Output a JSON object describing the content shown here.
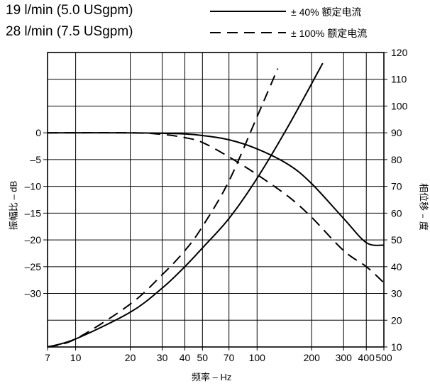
{
  "chart_data": {
    "type": "line",
    "flow_labels": [
      "19 l/min (5.0 USgpm)",
      "28 l/min (7.5 USgpm)"
    ],
    "legend": [
      {
        "style": "solid",
        "label_prefix": "± 40%",
        "label_cjk": "额定电流"
      },
      {
        "style": "dashed",
        "label_prefix": "± 100%",
        "label_cjk": "额定电流"
      }
    ],
    "xlabel_cjk": "频率",
    "xlabel_suffix": " – Hz",
    "ylabel_left_cjk": "振幅比",
    "ylabel_left_suffix": " – dB",
    "ylabel_right_cjk": "相位移 – 度",
    "x_scale": "log",
    "xlim": [
      7,
      500
    ],
    "x_ticks": [
      7,
      10,
      20,
      30,
      40,
      50,
      70,
      100,
      200,
      300,
      400,
      500
    ],
    "x_tick_labels": [
      "7",
      "10",
      "20",
      "30",
      "40",
      "50",
      "70",
      "100",
      "200",
      "300",
      "400",
      "500"
    ],
    "ylim_right": [
      10,
      120
    ],
    "y_right_ticks": [
      10,
      20,
      30,
      40,
      50,
      60,
      70,
      80,
      90,
      100,
      110,
      120
    ],
    "y_right_tick_labels": [
      "10",
      "20",
      "30",
      "40",
      "50",
      "60",
      "70",
      "80",
      "90",
      "100",
      "110",
      "120"
    ],
    "y_left_ticks": [
      0,
      -5,
      -10,
      -15,
      -20,
      -25,
      -30
    ],
    "y_left_tick_labels": [
      "0",
      "–5",
      "–10",
      "–15",
      "–20",
      "–25",
      "–30"
    ],
    "left_axis_map": {
      "db_0_at_right_value": 90,
      "right_units_per_db": 2
    },
    "grid": true,
    "series": [
      {
        "style": "solid",
        "quantity": "amplitude",
        "axis": "left",
        "x": [
          7,
          20,
          30,
          40,
          50,
          70,
          100,
          150,
          200,
          300,
          400,
          500
        ],
        "y": [
          0,
          0,
          -0.1,
          -0.2,
          -0.5,
          -1.3,
          -3.0,
          -6.0,
          -9.5,
          -16.0,
          -20.5,
          -21.0
        ]
      },
      {
        "style": "dashed",
        "quantity": "amplitude",
        "axis": "left",
        "x": [
          7,
          20,
          30,
          40,
          50,
          70,
          100,
          150,
          200,
          300,
          400,
          500
        ],
        "y": [
          0,
          0,
          -0.3,
          -0.9,
          -1.8,
          -4.5,
          -7.8,
          -12.0,
          -15.8,
          -22.0,
          -25.0,
          -28.0
        ]
      },
      {
        "style": "solid",
        "quantity": "phase",
        "axis": "right",
        "x": [
          7,
          10,
          20,
          30,
          40,
          50,
          70,
          100,
          150,
          230
        ],
        "y": [
          10,
          13,
          23,
          32,
          40,
          47,
          58,
          73,
          93,
          116
        ]
      },
      {
        "style": "dashed",
        "quantity": "phase",
        "axis": "right",
        "x": [
          7,
          10,
          20,
          30,
          40,
          50,
          70,
          100,
          130
        ],
        "y": [
          10,
          13,
          26,
          37,
          46,
          55,
          72,
          96,
          114
        ]
      }
    ]
  }
}
